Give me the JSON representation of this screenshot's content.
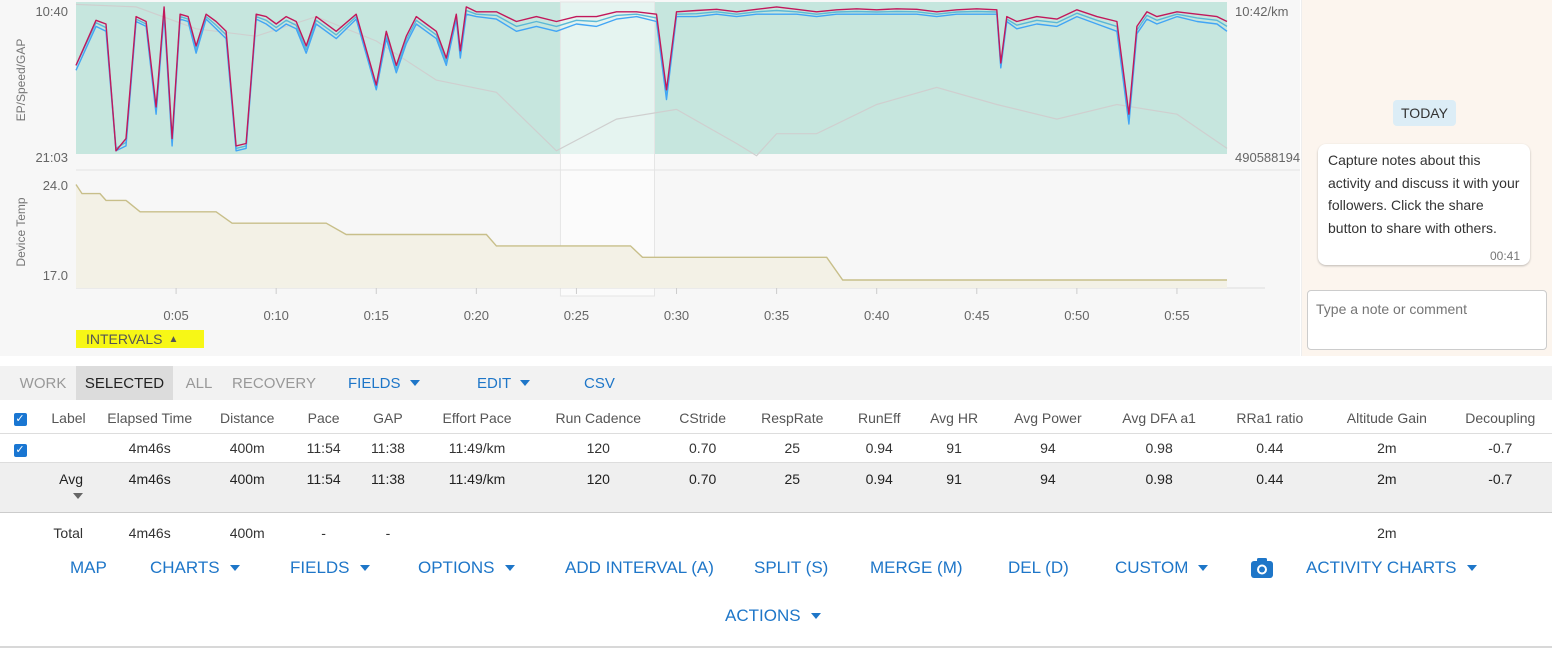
{
  "chart_data": [
    {
      "type": "line",
      "title": "",
      "ylabel": "EP/Speed/GAP",
      "y_left_ticks": [
        "10:40",
        "21:03"
      ],
      "y_right_ticks": [
        "10:42/km",
        "490588194"
      ],
      "xlabel": "",
      "x_ticks": [
        "0:05",
        "0:10",
        "0:15",
        "0:20",
        "0:25",
        "0:30",
        "0:35",
        "0:40",
        "0:45",
        "0:50",
        "0:55"
      ],
      "xlim_minutes": [
        0,
        57.5
      ],
      "ylim_pace_seconds_per_km": [
        640,
        1263
      ],
      "selected_range_minutes": [
        24.2,
        28.9
      ],
      "series": [
        {
          "color": "#c2185b",
          "x": [
            0,
            1,
            1.5,
            2,
            2.5,
            3,
            3.5,
            4,
            4.4,
            4.8,
            5.2,
            5.6,
            6,
            6.5,
            7,
            7.5,
            8,
            8.5,
            9,
            9.5,
            10,
            10.5,
            11,
            11.5,
            12,
            13,
            14,
            15,
            15.5,
            16,
            16.5,
            17,
            17.5,
            18,
            18.5,
            19,
            19.2,
            19.5,
            20,
            21,
            22,
            23,
            24,
            25,
            26,
            27,
            28,
            29,
            29.5,
            30,
            31,
            32,
            33,
            34,
            35,
            36,
            37,
            38,
            39,
            40,
            41,
            42,
            43,
            44,
            45,
            46,
            46.2,
            46.5,
            47,
            48,
            49,
            50,
            51,
            52,
            52.6,
            53,
            53.5,
            54,
            55,
            56,
            57,
            57.5
          ],
          "y": [
            900,
            715,
            730,
            1250,
            1200,
            700,
            720,
            1070,
            660,
            1200,
            690,
            700,
            820,
            690,
            720,
            760,
            1230,
            1220,
            690,
            700,
            730,
            700,
            720,
            820,
            700,
            760,
            690,
            980,
            760,
            900,
            780,
            700,
            730,
            760,
            870,
            690,
            840,
            660,
            680,
            680,
            720,
            700,
            720,
            700,
            700,
            680,
            680,
            690,
            1000,
            680,
            675,
            670,
            680,
            670,
            660,
            670,
            680,
            672,
            668,
            672,
            668,
            670,
            680,
            672,
            668,
            672,
            890,
            700,
            720,
            700,
            710,
            672,
            700,
            720,
            1100,
            740,
            680,
            700,
            680,
            690,
            700,
            720
          ]
        },
        {
          "color": "#42a5f5",
          "x": [
            0,
            1,
            1.5,
            2,
            2.5,
            3,
            3.5,
            4,
            4.4,
            4.8,
            5.2,
            5.6,
            6,
            6.5,
            7,
            7.5,
            8,
            8.5,
            9,
            9.5,
            10,
            10.5,
            11,
            11.5,
            12,
            13,
            14,
            15,
            15.5,
            16,
            16.5,
            17,
            17.5,
            18,
            18.5,
            19,
            19.2,
            19.5,
            20,
            21,
            22,
            23,
            24,
            25,
            26,
            27,
            28,
            29,
            29.5,
            30,
            31,
            32,
            33,
            34,
            35,
            36,
            37,
            38,
            39,
            40,
            41,
            42,
            43,
            44,
            45,
            46,
            46.2,
            46.5,
            47,
            48,
            49,
            50,
            51,
            52,
            52.6,
            53,
            53.5,
            54,
            55,
            56,
            57,
            57.5
          ],
          "y": [
            920,
            740,
            760,
            1250,
            1230,
            720,
            740,
            1100,
            690,
            1230,
            710,
            720,
            850,
            710,
            750,
            790,
            1250,
            1240,
            710,
            730,
            760,
            730,
            750,
            850,
            730,
            790,
            710,
            1000,
            790,
            930,
            810,
            730,
            760,
            790,
            900,
            710,
            870,
            690,
            700,
            710,
            760,
            740,
            760,
            730,
            740,
            710,
            700,
            720,
            1040,
            700,
            700,
            690,
            700,
            690,
            690,
            690,
            700,
            690,
            690,
            690,
            690,
            690,
            700,
            690,
            690,
            690,
            910,
            720,
            750,
            730,
            740,
            700,
            730,
            760,
            1140,
            770,
            710,
            730,
            700,
            720,
            730,
            760
          ]
        },
        {
          "color": "#5bb8d6",
          "x": [
            0,
            1,
            1.5,
            2,
            2.5,
            3,
            3.5,
            4,
            4.4,
            4.8,
            5.2,
            5.6,
            6,
            6.5,
            7,
            7.5,
            8,
            8.5,
            9,
            9.5,
            10,
            10.5,
            11,
            11.5,
            12,
            13,
            14,
            15,
            15.5,
            16,
            16.5,
            17,
            17.5,
            18,
            18.5,
            19,
            19.2,
            19.5,
            20,
            21,
            22,
            23,
            24,
            25,
            26,
            27,
            28,
            29,
            29.5,
            30,
            31,
            32,
            33,
            34,
            35,
            36,
            37,
            38,
            39,
            40,
            41,
            42,
            43,
            44,
            45,
            46,
            46.2,
            46.5,
            47,
            48,
            49,
            50,
            51,
            52,
            52.6,
            53,
            53.5,
            54,
            55,
            56,
            57,
            57.5
          ],
          "y": [
            900,
            725,
            745,
            1240,
            1215,
            710,
            730,
            1085,
            675,
            1215,
            700,
            710,
            835,
            700,
            735,
            775,
            1240,
            1230,
            700,
            715,
            745,
            715,
            735,
            835,
            715,
            775,
            700,
            990,
            775,
            915,
            795,
            715,
            745,
            775,
            885,
            700,
            855,
            675,
            690,
            695,
            740,
            720,
            740,
            715,
            720,
            695,
            690,
            705,
            1020,
            690,
            688,
            680,
            690,
            680,
            675,
            680,
            690,
            681,
            679,
            681,
            679,
            680,
            690,
            681,
            679,
            681,
            900,
            710,
            735,
            715,
            725,
            686,
            715,
            740,
            1120,
            755,
            695,
            715,
            690,
            705,
            715,
            740
          ]
        }
      ],
      "background_trace": {
        "color": "#cfcfcf",
        "x": [
          0,
          3,
          6,
          9,
          12,
          15,
          18,
          21,
          24,
          27,
          30,
          33,
          34,
          35,
          37,
          40,
          43,
          46,
          49,
          52,
          55,
          57.5
        ],
        "y": [
          650,
          660,
          750,
          780,
          700,
          800,
          960,
          1010,
          1250,
          1120,
          1080,
          1220,
          1270,
          1180,
          1180,
          1060,
          990,
          1060,
          1120,
          1060,
          1100,
          1240
        ]
      }
    },
    {
      "type": "line",
      "title": "",
      "ylabel": "Device Temp",
      "y_ticks": [
        "24.0",
        "17.0"
      ],
      "ylim": [
        15.3,
        25.5
      ],
      "series": [
        {
          "color": "#c8bf8a",
          "x": [
            0,
            0.3,
            1.2,
            1.5,
            2.5,
            3.2,
            7,
            7.8,
            12.5,
            13.5,
            20.5,
            21,
            27.7,
            28.3,
            37.5,
            38.3,
            57.5
          ],
          "y": [
            24.4,
            23.6,
            23.6,
            23.0,
            23.0,
            22.0,
            22.0,
            21.0,
            21.0,
            20.0,
            20.0,
            19.0,
            19.0,
            18.0,
            18.0,
            16.0,
            16.0
          ]
        }
      ]
    }
  ],
  "intervals_toggle": {
    "label": "INTERVALS"
  },
  "sidebar": {
    "today_badge": "TODAY",
    "note_text": "Capture notes about this activity and discuss it with your followers. Click the share button to share with others.",
    "note_time": "00:41",
    "comment_placeholder": "Type a note or comment"
  },
  "tabs": {
    "work": "WORK",
    "selected": "SELECTED",
    "all": "ALL",
    "recovery": "RECOVERY",
    "fields": "FIELDS",
    "edit": "EDIT",
    "csv": "CSV"
  },
  "table": {
    "headers": [
      "Label",
      "Elapsed Time",
      "Distance",
      "Pace",
      "GAP",
      "Effort Pace",
      "Run Cadence",
      "CStride",
      "RespRate",
      "RunEff",
      "Avg HR",
      "Avg Power",
      "Avg DFA a1",
      "RRa1 ratio",
      "Altitude Gain",
      "Decoupling"
    ],
    "row": [
      "",
      "4m46s",
      "400m",
      "11:54",
      "11:38",
      "11:49/km",
      "120",
      "0.70",
      "25",
      "0.94",
      "91",
      "94",
      "0.98",
      "0.44",
      "2m",
      "-0.7"
    ],
    "avg_label": "Avg",
    "avg": [
      "4m46s",
      "400m",
      "11:54",
      "11:38",
      "11:49/km",
      "120",
      "0.70",
      "25",
      "0.94",
      "91",
      "94",
      "0.98",
      "0.44",
      "2m",
      "-0.7"
    ],
    "total_label": "Total",
    "total": [
      "4m46s",
      "400m",
      "-",
      "-",
      "",
      "",
      "",
      "",
      "",
      "",
      "",
      "",
      "",
      "2m",
      ""
    ]
  },
  "buttons": {
    "map": "MAP",
    "charts": "CHARTS",
    "fields": "FIELDS",
    "options": "OPTIONS",
    "add_interval": "ADD INTERVAL (A)",
    "split": "SPLIT (S)",
    "merge": "MERGE (M)",
    "del": "DEL (D)",
    "custom": "CUSTOM",
    "activity_charts": "ACTIVITY CHARTS",
    "actions": "ACTIONS"
  }
}
